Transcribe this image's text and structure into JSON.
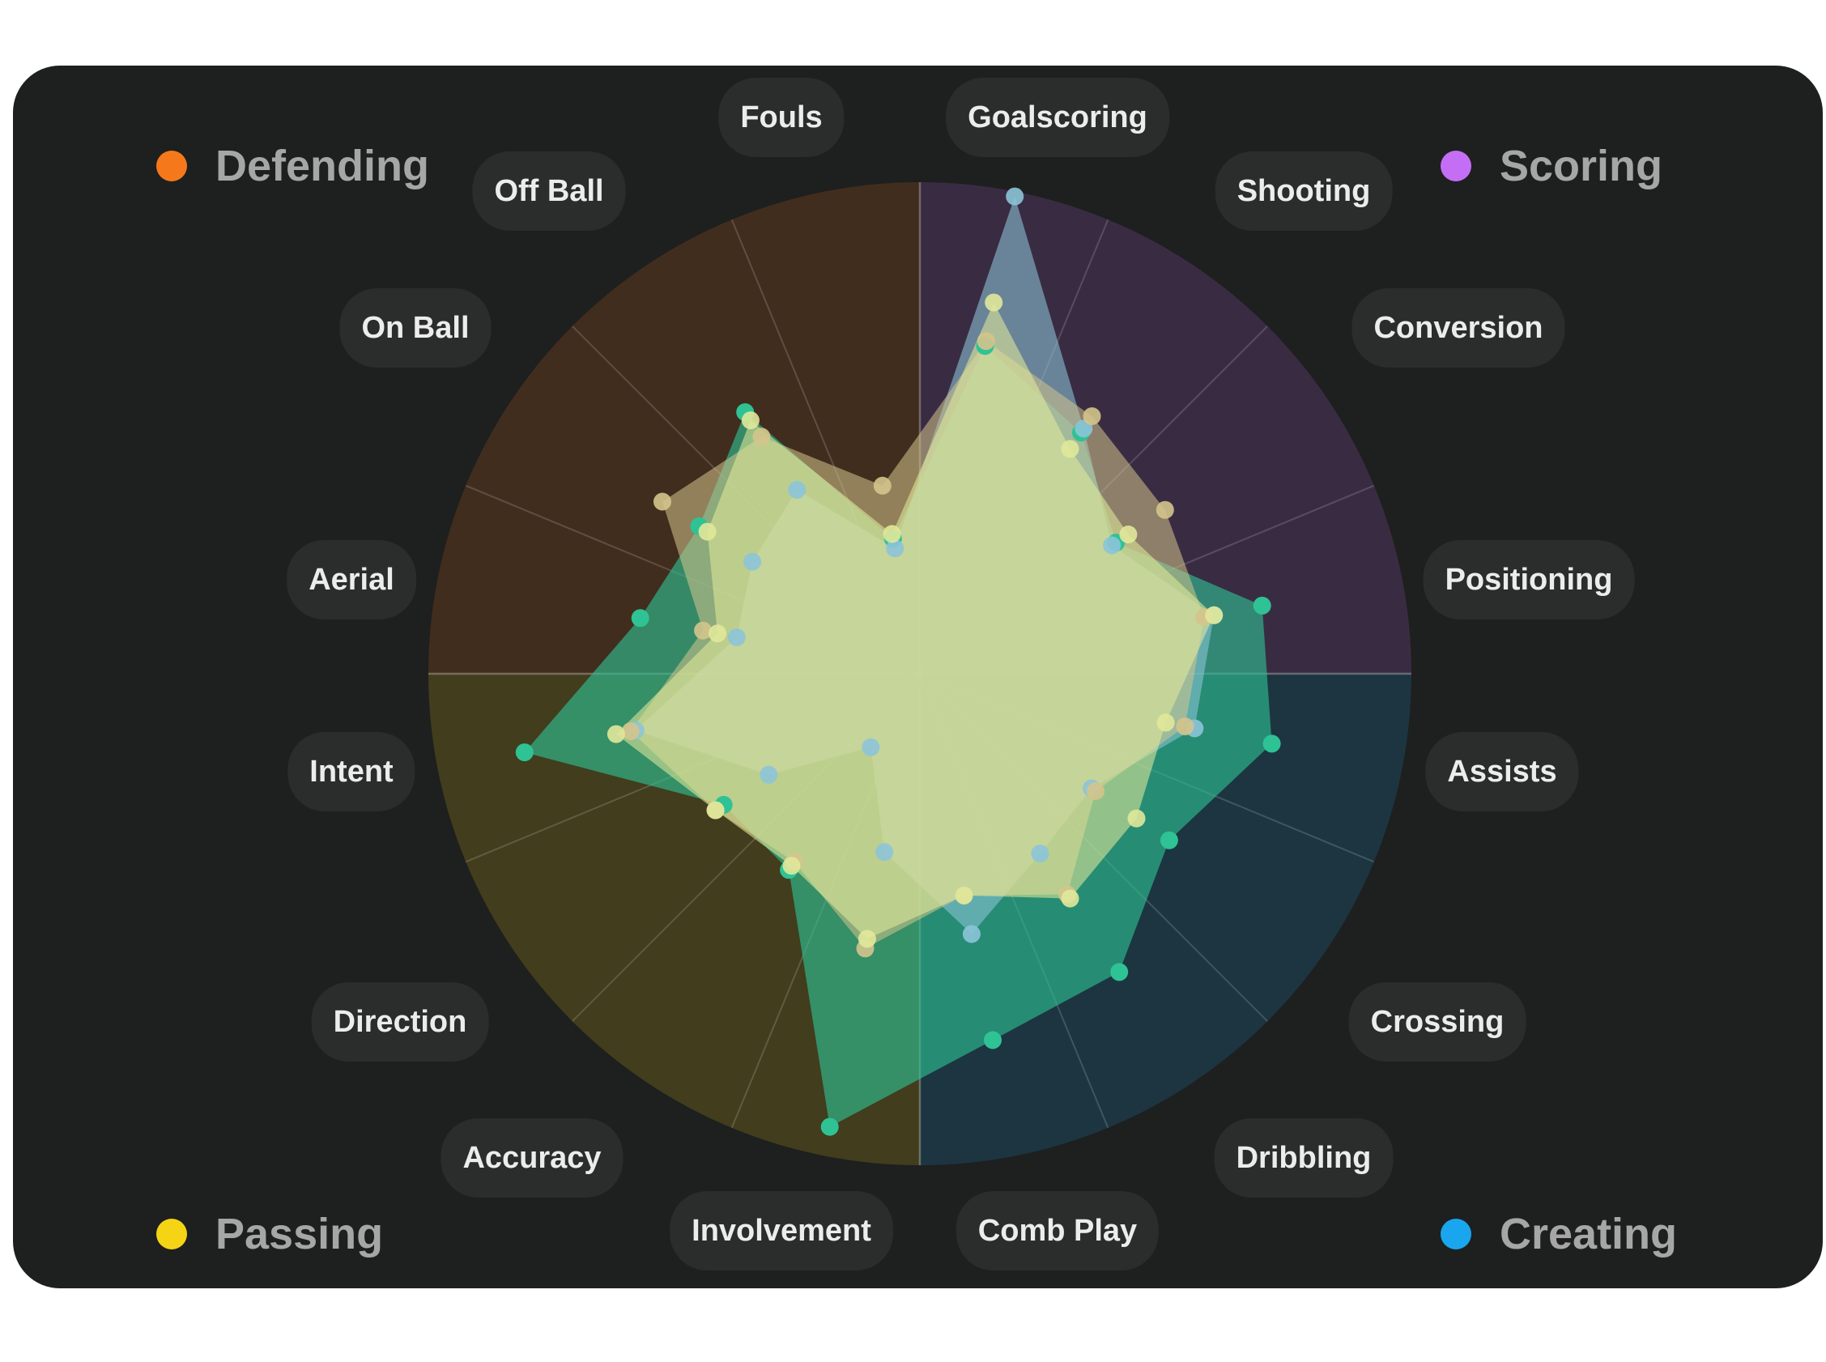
{
  "chart_data": {
    "type": "radar",
    "axes": [
      "Goalscoring",
      "Shooting",
      "Conversion",
      "Positioning",
      "Assists",
      "Crossing",
      "Dribbling",
      "Comb Play",
      "Involvement",
      "Accuracy",
      "Direction",
      "Intent",
      "Aerial",
      "On Ball",
      "Off Ball",
      "Fouls"
    ],
    "range": [
      0,
      100
    ],
    "groups": [
      {
        "name": "Scoring",
        "color": "#c46ef5",
        "axes": [
          "Goalscoring",
          "Shooting",
          "Conversion",
          "Positioning"
        ]
      },
      {
        "name": "Creating",
        "color": "#1aa6ee",
        "axes": [
          "Assists",
          "Crossing",
          "Dribbling",
          "Comb Play"
        ]
      },
      {
        "name": "Passing",
        "color": "#f5d416",
        "axes": [
          "Involvement",
          "Accuracy",
          "Direction",
          "Intent"
        ]
      },
      {
        "name": "Defending",
        "color": "#f5791b",
        "axes": [
          "Aerial",
          "On Ball",
          "Off Ball",
          "Fouls"
        ]
      }
    ],
    "series": [
      {
        "color": "#2fc294",
        "values": [
          68,
          59,
          48,
          71,
          73,
          61,
          73,
          76,
          94,
          48,
          48,
          82,
          58,
          54,
          64,
          28
        ]
      },
      {
        "color": "#8cc4d8",
        "values": [
          99,
          60,
          47,
          61,
          57,
          42,
          44,
          54,
          37,
          18,
          37,
          59,
          38,
          41,
          45,
          26
        ]
      },
      {
        "color": "#d4c48c",
        "values": [
          69,
          63,
          60,
          59,
          55,
          43,
          54,
          46,
          57,
          46,
          50,
          60,
          45,
          63,
          58,
          39
        ]
      },
      {
        "color": "#e0e89a",
        "values": [
          77,
          55,
          51,
          61,
          51,
          53,
          55,
          46,
          55,
          47,
          50,
          63,
          42,
          52,
          62,
          29
        ]
      }
    ]
  },
  "legend": {
    "defending": {
      "label": "Defending",
      "color": "#f5791b"
    },
    "scoring": {
      "label": "Scoring",
      "color": "#c46ef5"
    },
    "passing": {
      "label": "Passing",
      "color": "#f5d416"
    },
    "creating": {
      "label": "Creating",
      "color": "#1aa6ee"
    }
  },
  "labels": {
    "goalscoring": "Goalscoring",
    "shooting": "Shooting",
    "conversion": "Conversion",
    "positioning": "Positioning",
    "assists": "Assists",
    "crossing": "Crossing",
    "dribbling": "Dribbling",
    "comb_play": "Comb Play",
    "involvement": "Involvement",
    "accuracy": "Accuracy",
    "direction": "Direction",
    "intent": "Intent",
    "aerial": "Aerial",
    "on_ball": "On Ball",
    "off_ball": "Off Ball",
    "fouls": "Fouls"
  }
}
